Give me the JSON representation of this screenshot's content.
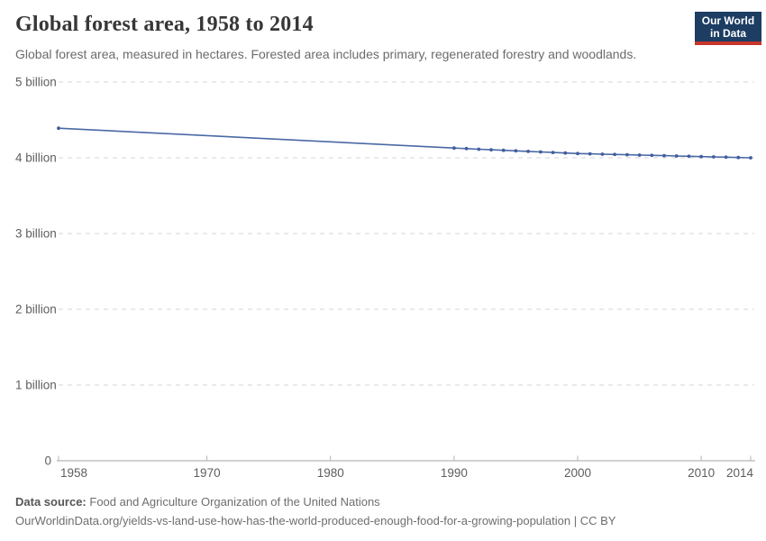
{
  "header": {
    "title": "Global forest area, 1958 to 2014",
    "subtitle": "Global forest area, measured in hectares. Forested area includes primary, regenerated forestry and woodlands.",
    "logo": {
      "line1": "Our World",
      "line2": "in Data",
      "bg_color": "#1d3d63",
      "accent_color": "#c5352b",
      "text_color": "#ffffff"
    }
  },
  "chart_data": {
    "type": "line",
    "title": "Global forest area, 1958 to 2014",
    "unit": "hectares",
    "xlabel": "",
    "ylabel": "",
    "xlim": [
      1958,
      2014
    ],
    "ylim_billion": [
      0,
      5
    ],
    "grid": "horizontal-dashed",
    "legend": "none",
    "x_ticks": [
      1958,
      1970,
      1980,
      1990,
      2000,
      2010,
      2014
    ],
    "y_ticks_billion": [
      0,
      1,
      2,
      3,
      4,
      5
    ],
    "y_tick_labels": [
      "0",
      "1 billion",
      "2 billion",
      "3 billion",
      "4 billion",
      "5 billion"
    ],
    "series": [
      {
        "name": "Global forest area",
        "color": "#4a69a5",
        "marker_color": "#3f5e9e",
        "x": [
          1958,
          1990,
          1991,
          1992,
          1993,
          1994,
          1995,
          1996,
          1997,
          1998,
          1999,
          2000,
          2001,
          2002,
          2003,
          2004,
          2005,
          2006,
          2007,
          2008,
          2009,
          2010,
          2011,
          2012,
          2013,
          2014
        ],
        "y_billion_hectares": [
          4.39,
          4.128,
          4.121,
          4.113,
          4.106,
          4.099,
          4.092,
          4.084,
          4.077,
          4.07,
          4.063,
          4.056,
          4.052,
          4.048,
          4.044,
          4.04,
          4.036,
          4.032,
          4.028,
          4.024,
          4.02,
          4.016,
          4.012,
          4.008,
          4.004,
          4.0
        ]
      }
    ]
  },
  "footer": {
    "source_label": "Data source:",
    "source_text": "Food and Agriculture Organization of the United Nations",
    "link_text": "OurWorldinData.org/yields-vs-land-use-how-has-the-world-produced-enough-food-for-a-growing-population | CC BY"
  }
}
